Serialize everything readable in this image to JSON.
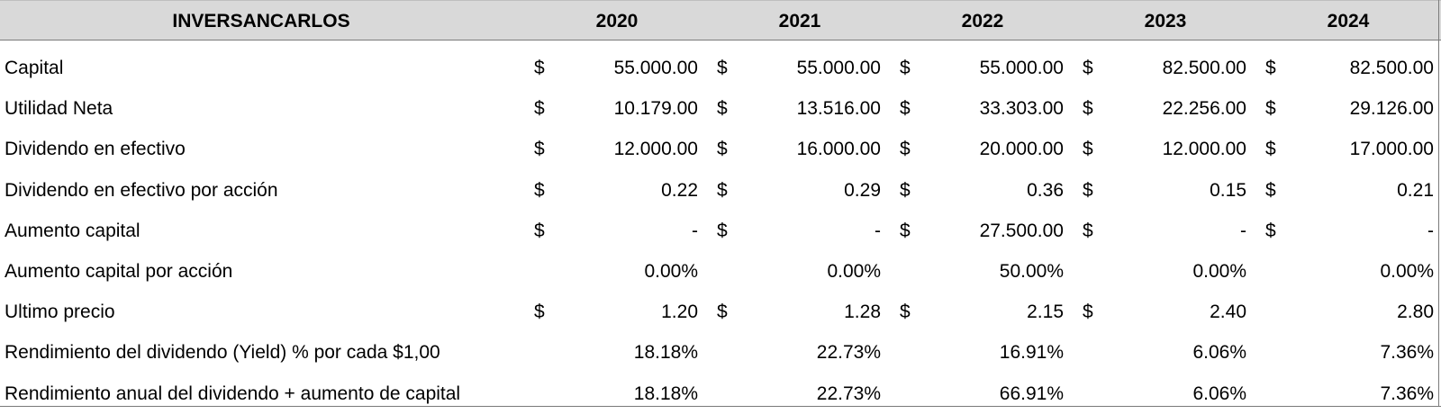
{
  "table": {
    "title": "INVERSANCARLOS",
    "years": [
      "2020",
      "2021",
      "2022",
      "2023",
      "2024"
    ],
    "rows": [
      {
        "label": "Capital",
        "currency": [
          "$",
          "$",
          "$",
          "$",
          "$"
        ],
        "values": [
          "55.000.00",
          "55.000.00",
          "55.000.00",
          "82.500.00",
          "82.500.00"
        ]
      },
      {
        "label": "Utilidad Neta",
        "currency": [
          "$",
          "$",
          "$",
          "$",
          "$"
        ],
        "values": [
          "10.179.00",
          "13.516.00",
          "33.303.00",
          "22.256.00",
          "29.126.00"
        ]
      },
      {
        "label": "Dividendo en efectivo",
        "currency": [
          "$",
          "$",
          "$",
          "$",
          "$"
        ],
        "values": [
          "12.000.00",
          "16.000.00",
          "20.000.00",
          "12.000.00",
          "17.000.00"
        ]
      },
      {
        "label": "Dividendo en efectivo por acción",
        "currency": [
          "$",
          "$",
          "$",
          "$",
          "$"
        ],
        "values": [
          "0.22",
          "0.29",
          "0.36",
          "0.15",
          "0.21"
        ]
      },
      {
        "label": "Aumento capital",
        "currency": [
          "$",
          "$",
          "$",
          "$",
          "$"
        ],
        "values": [
          "-",
          "-",
          "27.500.00",
          "-",
          "-"
        ]
      },
      {
        "label": "Aumento capital por acción",
        "currency": [
          "",
          "",
          "",
          "",
          ""
        ],
        "values": [
          "0.00%",
          "0.00%",
          "50.00%",
          "0.00%",
          "0.00%"
        ]
      },
      {
        "label": "Ultimo precio",
        "currency": [
          "$",
          "$",
          "$",
          "$",
          ""
        ],
        "values": [
          "1.20",
          "1.28",
          "2.15",
          "2.40",
          "2.80"
        ]
      },
      {
        "label": "Rendimiento del dividendo (Yield) % por cada $1,00",
        "currency": [
          "",
          "",
          "",
          "",
          ""
        ],
        "values": [
          "18.18%",
          "22.73%",
          "16.91%",
          "6.06%",
          "7.36%"
        ]
      },
      {
        "label": "Rendimiento anual del dividendo + aumento de capital",
        "currency": [
          "",
          "",
          "",
          "",
          ""
        ],
        "values": [
          "18.18%",
          "22.73%",
          "66.91%",
          "6.06%",
          "7.36%"
        ]
      }
    ]
  }
}
